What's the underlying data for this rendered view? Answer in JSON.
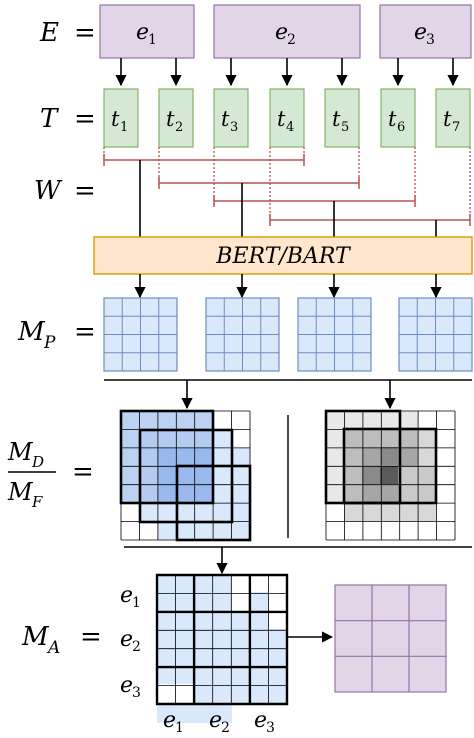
{
  "rows": {
    "E": {
      "sym": "E",
      "eq": "="
    },
    "T": {
      "sym": "T",
      "eq": "="
    },
    "W": {
      "sym": "W",
      "eq": "="
    },
    "MP": {
      "sym": "M",
      "sub": "P",
      "eq": "="
    },
    "MD_MF": {
      "num": "M",
      "num_sub": "D",
      "den": "M",
      "den_sub": "F",
      "eq": "="
    },
    "MA": {
      "sym": "M",
      "sub": "A",
      "eq": "="
    }
  },
  "entities": [
    {
      "base": "e",
      "sub": "1"
    },
    {
      "base": "e",
      "sub": "2"
    },
    {
      "base": "e",
      "sub": "3"
    }
  ],
  "tokens": [
    {
      "base": "t",
      "sub": "1"
    },
    {
      "base": "t",
      "sub": "2"
    },
    {
      "base": "t",
      "sub": "3"
    },
    {
      "base": "t",
      "sub": "4"
    },
    {
      "base": "t",
      "sub": "5"
    },
    {
      "base": "t",
      "sub": "6"
    },
    {
      "base": "t",
      "sub": "7"
    }
  ],
  "encoder": {
    "label": "BERT/BART"
  },
  "axis_labels": {
    "rows": [
      {
        "base": "e",
        "sub": "1"
      },
      {
        "base": "e",
        "sub": "2"
      },
      {
        "base": "e",
        "sub": "3"
      }
    ],
    "cols": [
      {
        "base": "e",
        "sub": "1"
      },
      {
        "base": "e",
        "sub": "2"
      },
      {
        "base": "e",
        "sub": "3"
      }
    ]
  },
  "colors": {
    "entity_fill": "#e1d5e7",
    "entity_stroke": "#9673a6",
    "token_fill": "#d5e8d4",
    "token_stroke": "#82b366",
    "encoder_fill": "#ffe6cc",
    "encoder_stroke": "#d79b00",
    "matrix_fill": "#dae8fc",
    "matrix_stroke": "#6c8ebf",
    "window_stroke": "#b85450"
  }
}
